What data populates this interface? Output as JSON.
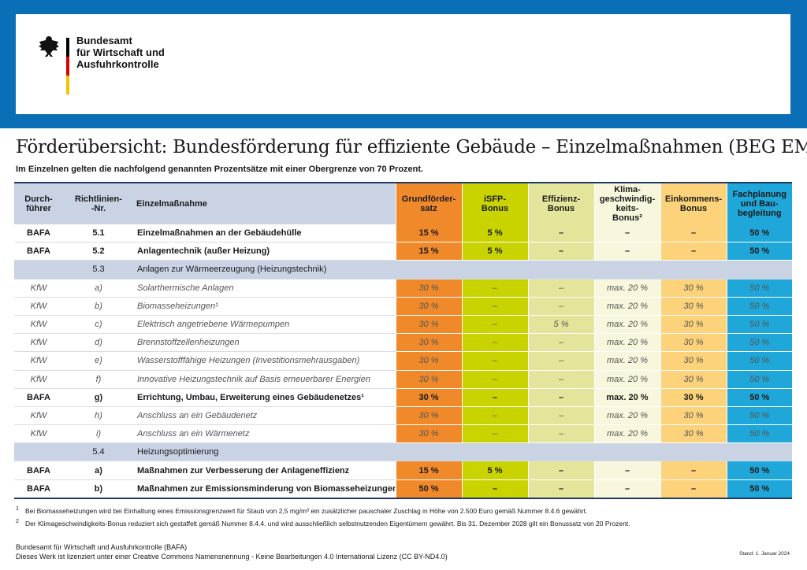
{
  "logo": {
    "text": "Bundesamt\nfür Wirtschaft und\nAusfuhrkontrolle"
  },
  "header": {
    "title": "Förderübersicht: Bundesförderung für effiziente Gebäude – Einzelmaßnahmen (BEG EM)",
    "subtitle": "Im Einzelnen gelten die nachfolgend genannten Prozentsätze mit einer Obergrenze von 70 Prozent."
  },
  "table": {
    "column_colors": [
      "#c9d3e4",
      "#c9d3e4",
      "#c9d3e4",
      "#f0892a",
      "#c9d300",
      "#e3e69a",
      "#f8f6dc",
      "#fcd27a",
      "#1ea7d8"
    ],
    "columns": [
      "Durch-\nführer",
      "Richtlinien-\n-Nr.",
      "Einzelmaßnahme",
      "Grundförder-\nsatz",
      "iSFP-\nBonus",
      "Effizienz-\nBonus",
      "Klima-\ngeschwindig-\nkeits-\nBonus²",
      "Einkommens-\nBonus",
      "Fachplanung\nund Bau-\nbegleitung"
    ],
    "rows": [
      {
        "emphasis": "bold",
        "cells": [
          "BAFA",
          "5.1",
          "Einzelmaßnahmen an der Gebäudehülle",
          "15 %",
          "5 %",
          "–",
          "–",
          "–",
          "50 %"
        ]
      },
      {
        "emphasis": "bold",
        "cells": [
          "BAFA",
          "5.2",
          "Anlagentechnik (außer Heizung)",
          "15 %",
          "5 %",
          "–",
          "–",
          "–",
          "50 %"
        ]
      },
      {
        "number": "5.3",
        "label": "Anlagen zur Wärmeerzeugung (Heizungstechnik)"
      },
      {
        "emphasis": "italic",
        "cells": [
          "KfW",
          "a)",
          "Solarthermische Anlagen",
          "30 %",
          "–",
          "–",
          "max. 20 %",
          "30 %",
          "50 %"
        ]
      },
      {
        "emphasis": "italic",
        "cells": [
          "KfW",
          "b)",
          "Biomasseheizungen¹",
          "30 %",
          "–",
          "–",
          "max. 20 %",
          "30 %",
          "50 %"
        ]
      },
      {
        "emphasis": "italic",
        "cells": [
          "KfW",
          "c)",
          "Elektrisch angetriebene Wärmepumpen",
          "30 %",
          "–",
          "5 %",
          "max. 20 %",
          "30 %",
          "50 %"
        ]
      },
      {
        "emphasis": "italic",
        "cells": [
          "KfW",
          "d)",
          "Brennstoffzellenheizungen",
          "30 %",
          "–",
          "–",
          "max. 20 %",
          "30 %",
          "50 %"
        ]
      },
      {
        "emphasis": "italic",
        "cells": [
          "KfW",
          "e)",
          "Wasserstofffähige Heizungen (Investitionsmehrausgaben)",
          "30 %",
          "–",
          "–",
          "max. 20 %",
          "30 %",
          "50 %"
        ]
      },
      {
        "emphasis": "italic",
        "cells": [
          "KfW",
          "f)",
          "Innovative Heizungstechnik auf Basis erneuerbarer Energien",
          "30 %",
          "–",
          "–",
          "max. 20 %",
          "30 %",
          "50 %"
        ]
      },
      {
        "emphasis": "bold",
        "cells": [
          "BAFA",
          "g)",
          "Errichtung, Umbau, Erweiterung eines Gebäudenetzes¹",
          "30 %",
          "–",
          "–",
          "max. 20 %",
          "30 %",
          "50 %"
        ]
      },
      {
        "emphasis": "italic",
        "cells": [
          "KfW",
          "h)",
          "Anschluss an ein Gebäudenetz",
          "30 %",
          "–",
          "–",
          "max. 20 %",
          "30 %",
          "50 %"
        ]
      },
      {
        "emphasis": "italic",
        "cells": [
          "KfW",
          "i)",
          "Anschluss an ein Wärmenetz",
          "30 %",
          "–",
          "–",
          "max. 20 %",
          "30 %",
          "50 %"
        ]
      },
      {
        "number": "5.4",
        "label": "Heizungsoptimierung"
      },
      {
        "emphasis": "bold",
        "cells": [
          "BAFA",
          "a)",
          "Maßnahmen zur Verbesserung der Anlageneffizienz",
          "15 %",
          "5 %",
          "–",
          "–",
          "–",
          "50 %"
        ]
      },
      {
        "emphasis": "bold",
        "cells": [
          "BAFA",
          "b)",
          "Maßnahmen zur Emissionsminderung von Biomasseheizungen",
          "50 %",
          "–",
          "–",
          "–",
          "–",
          "50 %"
        ]
      }
    ]
  },
  "footnotes": [
    {
      "marker": "1",
      "text": "Bei Biomasseheizungen wird bei Einhaltung eines Emissionsgrenzwert für Staub von 2,5 mg/m³ ein zusätzlicher pauschaler Zuschlag in Höhe von 2.500 Euro gemäß Nummer 8.4.6 gewährt."
    },
    {
      "marker": "2",
      "text": "Der Klimageschwindigkeits-Bonus reduziert sich gestaffelt gemäß Nummer 8.4.4. und wird ausschließlich selbstnutzenden Eigentümern gewährt. Bis 31. Dezember 2028 gilt ein Bonussatz von 20 Prozent."
    }
  ],
  "footer": {
    "lines": [
      "Bundesamt für Wirtschaft und Ausfuhrkontrolle (BAFA)",
      "Dieses Werk ist lizenziert unter einer Creative Commons Namensnennung - Keine Bearbeitungen 4.0 International Lizenz (CC BY-ND4.0)"
    ],
    "date": "Stand: 1. Januar 2024"
  }
}
